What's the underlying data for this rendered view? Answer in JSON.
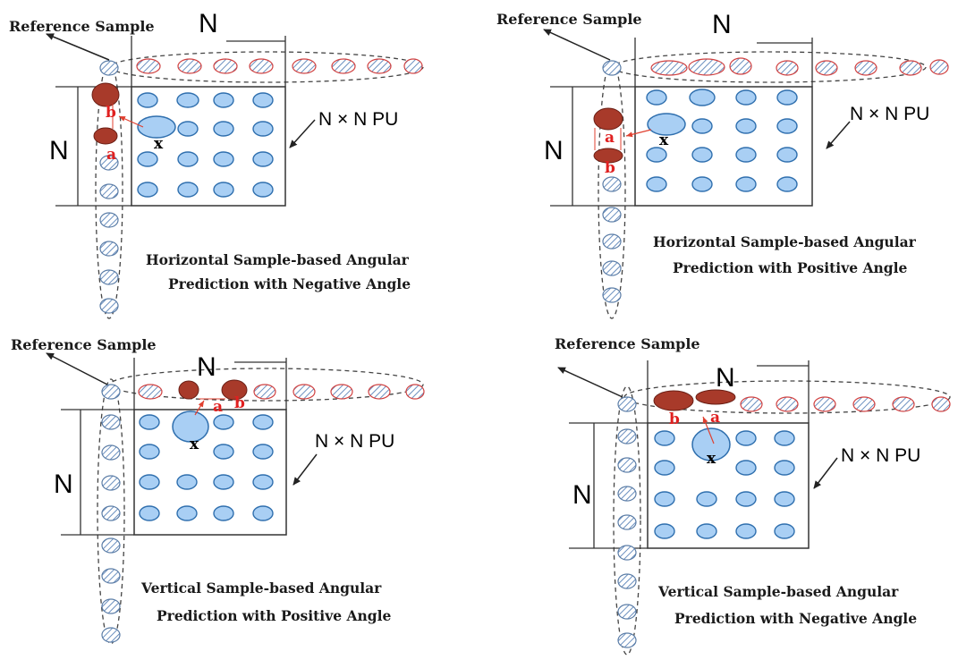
{
  "panels": [
    {
      "id": "top-left",
      "reference_label": "Reference Sample",
      "n_label_top": "N",
      "n_label_side": "N",
      "pu_label": "N × N PU",
      "caption_line1": "Horizontal Sample-based Angular",
      "caption_line2": "Prediction with Negative Angle",
      "label_a": "a",
      "label_b": "b",
      "label_x": "x"
    },
    {
      "id": "top-right",
      "reference_label": "Reference Sample",
      "n_label_top": "N",
      "n_label_side": "N",
      "pu_label": "N × N PU",
      "caption_line1": "Horizontal Sample-based Angular",
      "caption_line2": "Prediction with Positive Angle",
      "label_a": "a",
      "label_b": "b",
      "label_x": "x"
    },
    {
      "id": "bottom-left",
      "reference_label": "Reference Sample",
      "n_label_top": "N",
      "n_label_side": "N",
      "pu_label": "N × N PU",
      "caption_line1": "Vertical Sample-based Angular",
      "caption_line2": "Prediction with Positive Angle",
      "label_a": "a",
      "label_b": "b",
      "label_x": "x"
    },
    {
      "id": "bottom-right",
      "reference_label": "Reference Sample",
      "n_label_top": "N",
      "n_label_side": "N",
      "pu_label": "N × N PU",
      "caption_line1": "Vertical Sample-based Angular",
      "caption_line2": "Prediction with Negative Angle",
      "label_a": "a",
      "label_b": "b",
      "label_x": "x"
    }
  ],
  "colors": {
    "pixel_fill": "#a9cff4",
    "pixel_stroke": "#2f6fae",
    "ref_stroke_left": "#5a7ca6",
    "ref_stroke_top": "#d04040",
    "ref_hatch": "#6a8fbf",
    "highlight": "#a83a2a",
    "label_red": "#e02020",
    "line": "#333333"
  }
}
